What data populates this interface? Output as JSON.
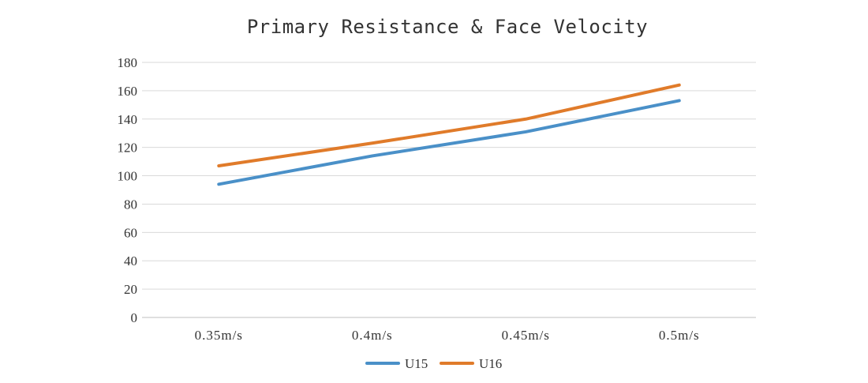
{
  "chart_data": {
    "type": "line",
    "title": "Primary Resistance & Face Velocity",
    "categories": [
      "0.35m/s",
      "0.4m/s",
      "0.45m/s",
      "0.5m/s"
    ],
    "series": [
      {
        "name": "U15",
        "color": "#4A90C8",
        "values": [
          94,
          114,
          131,
          153
        ]
      },
      {
        "name": "U16",
        "color": "#E07B2A",
        "values": [
          107,
          123,
          140,
          164
        ]
      }
    ],
    "yticks": [
      "0",
      "20",
      "40",
      "60",
      "80",
      "100",
      "120",
      "140",
      "160",
      "180"
    ],
    "ylim": [
      0,
      180
    ],
    "grid": true,
    "legend_position": "bottom"
  }
}
